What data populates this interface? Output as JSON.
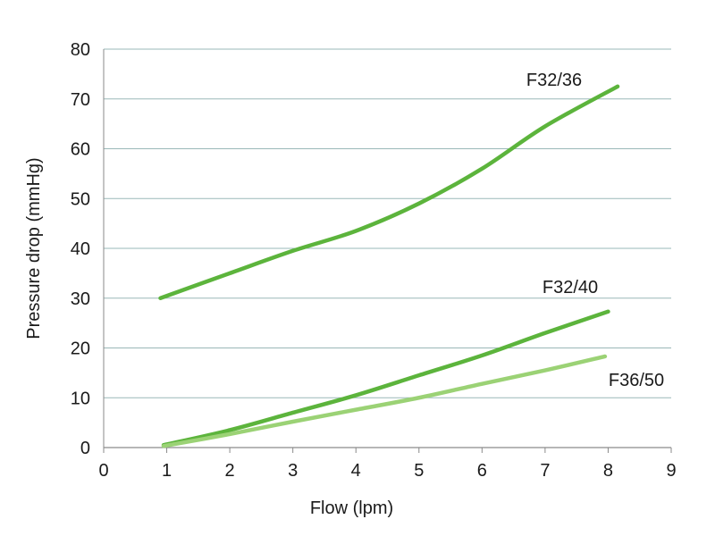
{
  "chart_data": {
    "type": "line",
    "title": "",
    "xlabel": "Flow (lpm)",
    "ylabel": "Pressure drop (mmHg)",
    "xlim": [
      0,
      9
    ],
    "ylim": [
      0,
      80
    ],
    "xticks": [
      "0",
      "1",
      "2",
      "3",
      "4",
      "5",
      "6",
      "7",
      "8",
      "9"
    ],
    "yticks": [
      "0",
      "10",
      "20",
      "30",
      "40",
      "50",
      "60",
      "70",
      "80"
    ],
    "grid": "horizontal",
    "colors": {
      "grid": "#9ab8b8",
      "axis": "#8a8a8a",
      "series_dark": "#5cb43c",
      "series_light": "#9bd275"
    },
    "series": [
      {
        "name": "F32/36",
        "color": "#5cb43c",
        "x": [
          0.9,
          2,
          3,
          4,
          5,
          6,
          7,
          8.15
        ],
        "y": [
          30,
          35,
          39.5,
          43.5,
          49,
          56,
          64.5,
          72.5
        ]
      },
      {
        "name": "F32/40",
        "color": "#5cb43c",
        "x": [
          0.95,
          2,
          3,
          4,
          5,
          6,
          7,
          8.0
        ],
        "y": [
          0.5,
          3.5,
          7,
          10.5,
          14.5,
          18.5,
          23,
          27.3
        ]
      },
      {
        "name": "F36/50",
        "color": "#9bd275",
        "x": [
          0.95,
          2,
          3,
          4,
          5,
          6,
          7,
          7.95
        ],
        "y": [
          0.3,
          2.7,
          5.2,
          7.6,
          10,
          12.8,
          15.5,
          18.3
        ]
      }
    ]
  }
}
